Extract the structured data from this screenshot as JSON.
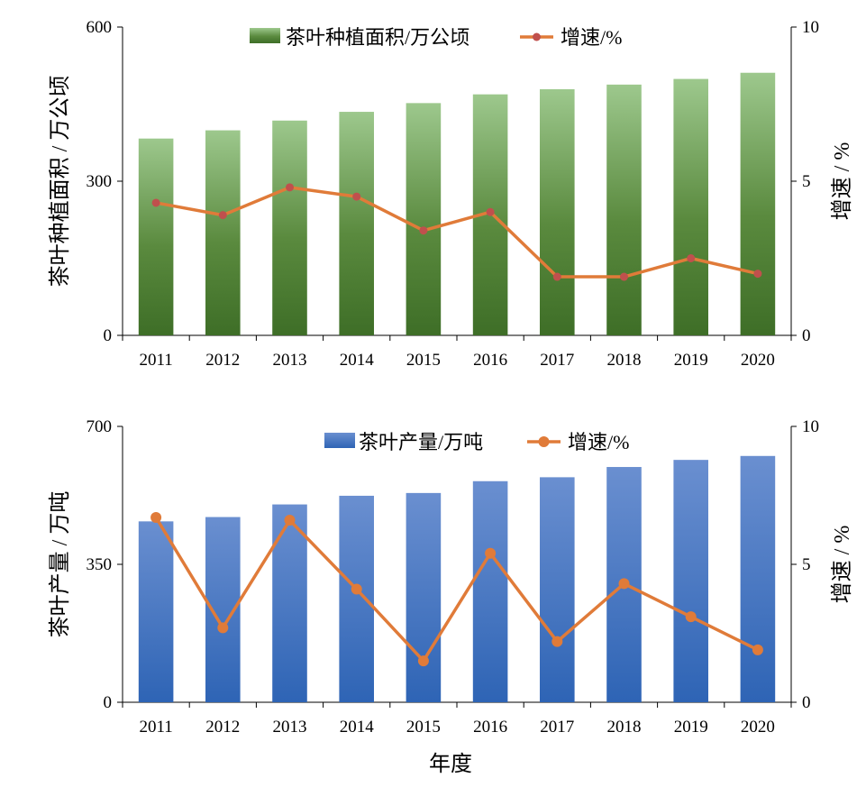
{
  "colors": {
    "green_top": "#9DC88D",
    "green_bottom": "#3E6E27",
    "blue_top": "#6A8FD0",
    "blue_bottom": "#2E64B5",
    "line_orange": "#E07B39",
    "marker_red": "#C0504D"
  },
  "x_label": "年度",
  "chart_data": [
    {
      "type": "bar",
      "categories": [
        "2011",
        "2012",
        "2013",
        "2014",
        "2015",
        "2016",
        "2017",
        "2018",
        "2019",
        "2020"
      ],
      "series": [
        {
          "name": "茶叶种植面积/万公顷",
          "type": "bar",
          "axis": "left",
          "values": [
            383,
            399,
            418,
            435,
            452,
            469,
            479,
            488,
            499,
            511
          ]
        },
        {
          "name": "增速/%",
          "type": "line",
          "axis": "right",
          "values": [
            4.3,
            3.9,
            4.8,
            4.5,
            3.4,
            4.0,
            1.9,
            1.9,
            2.5,
            2.0
          ]
        }
      ],
      "ylabel": "茶叶种植面积 / 万公顷",
      "y2label": "增速 / %",
      "ylim": [
        0,
        600
      ],
      "y2lim": [
        0,
        10
      ],
      "yticks": [
        "0",
        "300",
        "600"
      ],
      "y2ticks": [
        "0",
        "5",
        "10"
      ],
      "legend_position": "top"
    },
    {
      "type": "bar",
      "categories": [
        "2011",
        "2012",
        "2013",
        "2014",
        "2015",
        "2016",
        "2017",
        "2018",
        "2019",
        "2020"
      ],
      "series": [
        {
          "name": "茶叶产量/万吨",
          "type": "bar",
          "axis": "left",
          "values": [
            459,
            470,
            502,
            524,
            531,
            561,
            571,
            597,
            615,
            625
          ]
        },
        {
          "name": "增速/%",
          "type": "line",
          "axis": "right",
          "values": [
            6.7,
            2.7,
            6.6,
            4.1,
            1.5,
            5.4,
            2.2,
            4.3,
            3.1,
            1.9
          ]
        }
      ],
      "ylabel": "茶叶产量 / 万吨",
      "y2label": "增速 / %",
      "ylim": [
        0,
        700
      ],
      "y2lim": [
        0,
        10
      ],
      "yticks": [
        "0",
        "350",
        "700"
      ],
      "y2ticks": [
        "0",
        "5",
        "10"
      ],
      "legend_position": "top"
    }
  ]
}
